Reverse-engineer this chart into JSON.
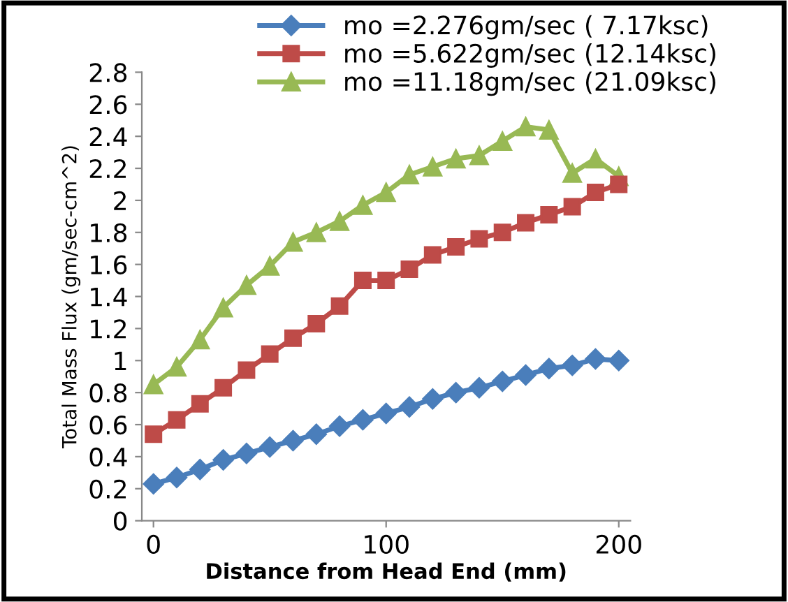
{
  "chart_data": {
    "type": "line",
    "xlabel": "Distance from Head End (mm)",
    "ylabel": "Total Mass Flux (gm/sec-cm^2)",
    "x": [
      0,
      10,
      20,
      30,
      40,
      50,
      60,
      70,
      80,
      90,
      100,
      110,
      120,
      130,
      140,
      150,
      160,
      170,
      180,
      190,
      200
    ],
    "series": [
      {
        "name": "mo =2.276gm/sec ( 7.17ksc)",
        "color": "#4a7ebb",
        "marker": "diamond",
        "values": [
          0.23,
          0.27,
          0.32,
          0.38,
          0.42,
          0.46,
          0.5,
          0.54,
          0.59,
          0.63,
          0.67,
          0.71,
          0.76,
          0.8,
          0.83,
          0.87,
          0.91,
          0.95,
          0.97,
          1.01,
          1.0
        ]
      },
      {
        "name": "mo =5.622gm/sec (12.14ksc)",
        "color": "#be4b48",
        "marker": "square",
        "values": [
          0.54,
          0.63,
          0.73,
          0.83,
          0.94,
          1.04,
          1.14,
          1.23,
          1.34,
          1.5,
          1.5,
          1.57,
          1.66,
          1.71,
          1.76,
          1.8,
          1.86,
          1.91,
          1.96,
          2.05,
          2.1
        ]
      },
      {
        "name": "mo =11.18gm/sec (21.09ksc)",
        "color": "#98b954",
        "marker": "triangle",
        "values": [
          0.85,
          0.96,
          1.13,
          1.33,
          1.47,
          1.59,
          1.74,
          1.8,
          1.87,
          1.97,
          2.05,
          2.16,
          2.21,
          2.26,
          2.28,
          2.37,
          2.46,
          2.44,
          2.17,
          2.26,
          2.15
        ]
      }
    ],
    "xlim": [
      -5,
      205
    ],
    "xticks": [
      0,
      100,
      200
    ],
    "ylim": [
      0,
      2.8
    ],
    "yticks": [
      0,
      0.2,
      0.4,
      0.6,
      0.8,
      1,
      1.2,
      1.4,
      1.6,
      1.8,
      2,
      2.2,
      2.4,
      2.6,
      2.8
    ],
    "grid": false,
    "legend": "top",
    "line_style": "solid"
  }
}
